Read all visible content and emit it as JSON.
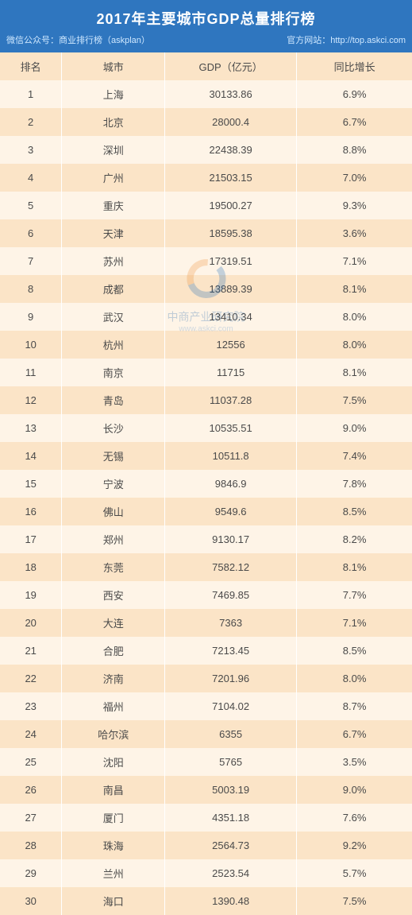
{
  "colors": {
    "header_bg": "#2f76bf",
    "th_bg": "#fbe4c7",
    "th_color": "#4a4a4a",
    "td_color": "#4a4a4a",
    "row_odd": "#fef4e7",
    "row_even": "#fbe4c7",
    "watermark_blue": "#1768b5",
    "watermark_orange": "#ef8b2f"
  },
  "table": {
    "type": "table",
    "title": "2017年主要城市GDP总量排行榜",
    "subtitle_left": "微信公众号：商业排行榜（askplan）",
    "subtitle_right": "官方网站：http://top.askci.com",
    "columns": [
      "排名",
      "城市",
      "GDP（亿元）",
      "同比增长"
    ],
    "col_widths_pct": [
      15,
      25,
      32,
      28
    ],
    "font_size_title": 18,
    "font_size_body": 13,
    "rows": [
      [
        1,
        "上海",
        "30133.86",
        "6.9%"
      ],
      [
        2,
        "北京",
        "28000.4",
        "6.7%"
      ],
      [
        3,
        "深圳",
        "22438.39",
        "8.8%"
      ],
      [
        4,
        "广州",
        "21503.15",
        "7.0%"
      ],
      [
        5,
        "重庆",
        "19500.27",
        "9.3%"
      ],
      [
        6,
        "天津",
        "18595.38",
        "3.6%"
      ],
      [
        7,
        "苏州",
        "17319.51",
        "7.1%"
      ],
      [
        8,
        "成都",
        "13889.39",
        "8.1%"
      ],
      [
        9,
        "武汉",
        "13410.34",
        "8.0%"
      ],
      [
        10,
        "杭州",
        "12556",
        "8.0%"
      ],
      [
        11,
        "南京",
        "11715",
        "8.1%"
      ],
      [
        12,
        "青岛",
        "11037.28",
        "7.5%"
      ],
      [
        13,
        "长沙",
        "10535.51",
        "9.0%"
      ],
      [
        14,
        "无锡",
        "10511.8",
        "7.4%"
      ],
      [
        15,
        "宁波",
        "9846.9",
        "7.8%"
      ],
      [
        16,
        "佛山",
        "9549.6",
        "8.5%"
      ],
      [
        17,
        "郑州",
        "9130.17",
        "8.2%"
      ],
      [
        18,
        "东莞",
        "7582.12",
        "8.1%"
      ],
      [
        19,
        "西安",
        "7469.85",
        "7.7%"
      ],
      [
        20,
        "大连",
        "7363",
        "7.1%"
      ],
      [
        21,
        "合肥",
        "7213.45",
        "8.5%"
      ],
      [
        22,
        "济南",
        "7201.96",
        "8.0%"
      ],
      [
        23,
        "福州",
        "7104.02",
        "8.7%"
      ],
      [
        24,
        "哈尔滨",
        "6355",
        "6.7%"
      ],
      [
        25,
        "沈阳",
        "5765",
        "3.5%"
      ],
      [
        26,
        "南昌",
        "5003.19",
        "9.0%"
      ],
      [
        27,
        "厦门",
        "4351.18",
        "7.6%"
      ],
      [
        28,
        "珠海",
        "2564.73",
        "9.2%"
      ],
      [
        29,
        "兰州",
        "2523.54",
        "5.7%"
      ],
      [
        30,
        "海口",
        "1390.48",
        "7.5%"
      ]
    ]
  },
  "watermark": {
    "text_main": "中商产业研究院",
    "text_sub": "www.askci.com"
  }
}
